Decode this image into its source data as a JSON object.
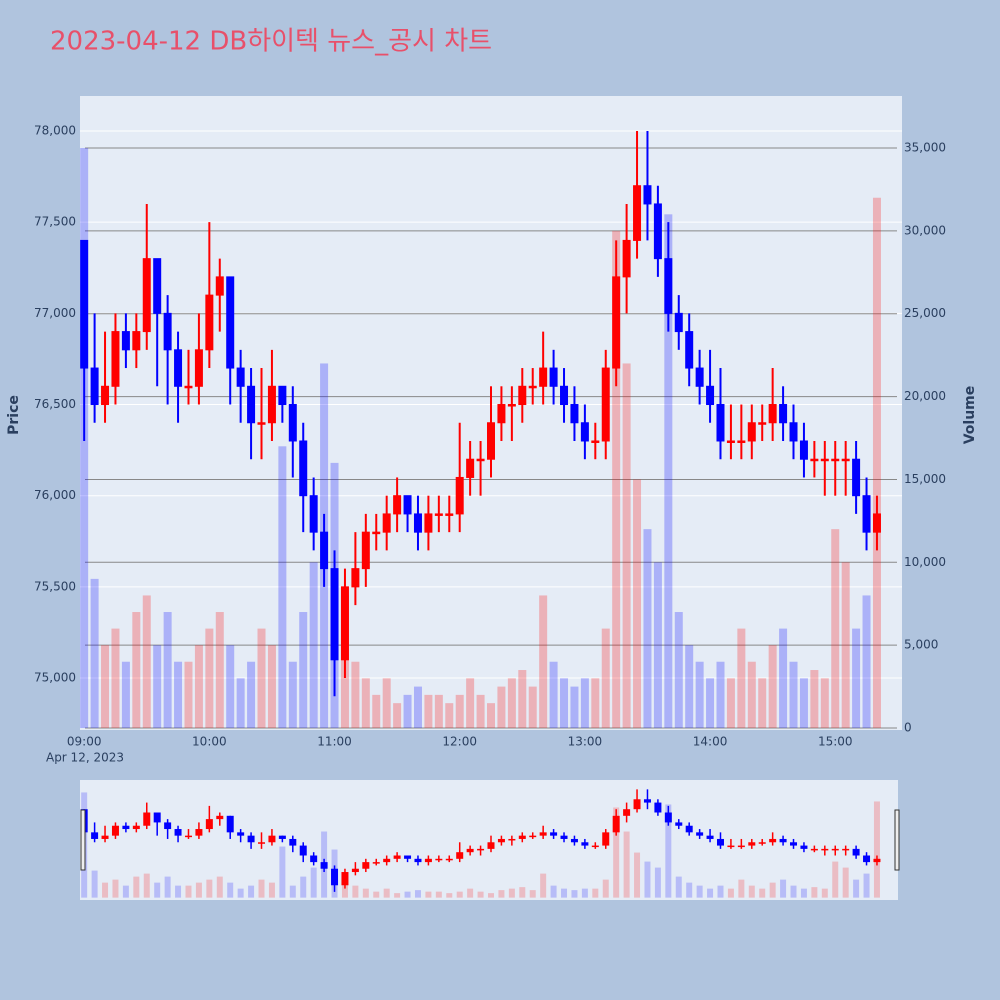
{
  "chart_data": {
    "type": "candlestick",
    "title": "2023-04-12 DB하이텍 뉴스_공시 차트",
    "y_title": "Price",
    "y2_title": "Volume",
    "date_label": "Apr 12, 2023",
    "increasing_color": "#ff0000",
    "decreasing_color": "#0000ff",
    "x": [
      "09:00",
      "09:05",
      "09:10",
      "09:15",
      "09:20",
      "09:25",
      "09:30",
      "09:35",
      "09:40",
      "09:45",
      "09:50",
      "09:55",
      "10:00",
      "10:05",
      "10:10",
      "10:15",
      "10:20",
      "10:25",
      "10:30",
      "10:35",
      "10:40",
      "10:45",
      "10:50",
      "10:55",
      "11:00",
      "11:05",
      "11:10",
      "11:15",
      "11:20",
      "11:25",
      "11:30",
      "11:35",
      "11:40",
      "11:45",
      "11:50",
      "11:55",
      "12:00",
      "12:05",
      "12:10",
      "12:15",
      "12:20",
      "12:25",
      "12:30",
      "12:35",
      "12:40",
      "12:45",
      "12:50",
      "12:55",
      "13:00",
      "13:05",
      "13:10",
      "13:15",
      "13:20",
      "13:25",
      "13:30",
      "13:35",
      "13:40",
      "13:45",
      "13:50",
      "13:55",
      "14:00",
      "14:05",
      "14:10",
      "14:15",
      "14:20",
      "14:25",
      "14:30",
      "14:35",
      "14:40",
      "14:45",
      "14:50",
      "14:55",
      "15:00",
      "15:05",
      "15:10",
      "15:15",
      "15:20"
    ],
    "open": [
      77400,
      76700,
      76500,
      76600,
      76900,
      76800,
      76900,
      77300,
      77000,
      76800,
      76600,
      76600,
      76800,
      77100,
      77200,
      76700,
      76600,
      76400,
      76400,
      76600,
      76500,
      76300,
      76000,
      75800,
      75600,
      75100,
      75500,
      75600,
      75800,
      75800,
      75900,
      76000,
      75900,
      75800,
      75900,
      75900,
      75900,
      76100,
      76200,
      76200,
      76400,
      76500,
      76500,
      76600,
      76600,
      76700,
      76600,
      76500,
      76400,
      76300,
      76300,
      76700,
      77200,
      77400,
      77700,
      77600,
      77300,
      77000,
      76900,
      76700,
      76600,
      76500,
      76300,
      76300,
      76300,
      76400,
      76400,
      76500,
      76400,
      76300,
      76200,
      76200,
      76200,
      76200,
      76200,
      76000,
      75800
    ],
    "high": [
      77400,
      77000,
      76900,
      77000,
      77000,
      77000,
      77600,
      77300,
      77100,
      76900,
      76800,
      77000,
      77500,
      77300,
      77200,
      76800,
      76700,
      76700,
      76800,
      76600,
      76600,
      76400,
      76100,
      75900,
      75700,
      75600,
      75800,
      75900,
      75900,
      76000,
      76100,
      76000,
      76000,
      76000,
      76000,
      76000,
      76400,
      76300,
      76300,
      76600,
      76600,
      76600,
      76700,
      76700,
      76900,
      76800,
      76700,
      76600,
      76500,
      76400,
      76800,
      77400,
      77600,
      78000,
      78000,
      77700,
      77500,
      77100,
      77000,
      76800,
      76800,
      76700,
      76500,
      76500,
      76500,
      76500,
      76700,
      76600,
      76500,
      76400,
      76300,
      76300,
      76300,
      76300,
      76300,
      76100,
      76000
    ],
    "low": [
      76300,
      76400,
      76400,
      76500,
      76700,
      76700,
      76800,
      76600,
      76500,
      76400,
      76500,
      76500,
      76700,
      76900,
      76500,
      76400,
      76200,
      76200,
      76300,
      76400,
      76100,
      75800,
      75700,
      75500,
      74900,
      75000,
      75400,
      75500,
      75700,
      75700,
      75800,
      75800,
      75700,
      75700,
      75800,
      75800,
      75800,
      76000,
      76000,
      76100,
      76300,
      76300,
      76400,
      76500,
      76500,
      76500,
      76400,
      76300,
      76200,
      76200,
      76200,
      76600,
      77000,
      77300,
      77400,
      77200,
      76900,
      76800,
      76600,
      76500,
      76400,
      76200,
      76200,
      76200,
      76200,
      76300,
      76300,
      76300,
      76200,
      76100,
      76100,
      76000,
      76000,
      76000,
      75900,
      75700,
      75700
    ],
    "close": [
      76700,
      76500,
      76600,
      76900,
      76800,
      76900,
      77300,
      77000,
      76800,
      76600,
      76600,
      76800,
      77100,
      77200,
      76700,
      76600,
      76400,
      76400,
      76600,
      76500,
      76300,
      76000,
      75800,
      75600,
      75100,
      75500,
      75600,
      75800,
      75800,
      75900,
      76000,
      75900,
      75800,
      75900,
      75900,
      75900,
      76100,
      76200,
      76200,
      76400,
      76500,
      76500,
      76600,
      76600,
      76700,
      76600,
      76500,
      76400,
      76300,
      76300,
      76700,
      77200,
      77400,
      77700,
      77600,
      77300,
      77000,
      76900,
      76700,
      76600,
      76500,
      76300,
      76300,
      76300,
      76400,
      76400,
      76500,
      76400,
      76300,
      76200,
      76200,
      76200,
      76200,
      76200,
      76000,
      75800,
      75900
    ],
    "volume": [
      35000,
      9000,
      5000,
      6000,
      4000,
      7000,
      8000,
      5000,
      7000,
      4000,
      4000,
      5000,
      6000,
      7000,
      5000,
      3000,
      4000,
      6000,
      5000,
      17000,
      4000,
      7000,
      10000,
      22000,
      16000,
      8000,
      4000,
      3000,
      2000,
      3000,
      1500,
      2000,
      2500,
      2000,
      2000,
      1500,
      2000,
      3000,
      2000,
      1500,
      2500,
      3000,
      3500,
      2500,
      8000,
      4000,
      3000,
      2500,
      3000,
      3000,
      6000,
      30000,
      22000,
      15000,
      12000,
      10000,
      31000,
      7000,
      5000,
      4000,
      3000,
      4000,
      3000,
      6000,
      4000,
      3000,
      5000,
      6000,
      4000,
      3000,
      3500,
      3000,
      12000,
      10000,
      6000,
      8000,
      32000
    ],
    "xlim": [
      "08:58",
      "15:32"
    ],
    "xticks": [
      "09:00",
      "10:00",
      "11:00",
      "12:00",
      "13:00",
      "14:00",
      "15:00"
    ],
    "ylim": [
      74715,
      78192
    ],
    "yticks": [
      {
        "value": 75000,
        "label": "75,000"
      },
      {
        "value": 75500,
        "label": "75,500"
      },
      {
        "value": 76000,
        "label": "76,000"
      },
      {
        "value": 76500,
        "label": "76,500"
      },
      {
        "value": 77000,
        "label": "77,000"
      },
      {
        "value": 77500,
        "label": "77,500"
      },
      {
        "value": 78000,
        "label": "78,000"
      }
    ],
    "y2lim": [
      -120,
      38140
    ],
    "y2ticks": [
      0,
      {
        "value": 5000,
        "label": "5,000"
      },
      {
        "value": 10000,
        "label": "10,000"
      },
      {
        "value": 15000,
        "label": "15,000"
      },
      {
        "value": 20000,
        "label": "20,000"
      },
      {
        "value": 25000,
        "label": "25,000"
      },
      {
        "value": 30000,
        "label": "30,000"
      },
      {
        "value": 35000,
        "label": "35,000"
      }
    ],
    "grid": true,
    "rangeslider": true
  }
}
